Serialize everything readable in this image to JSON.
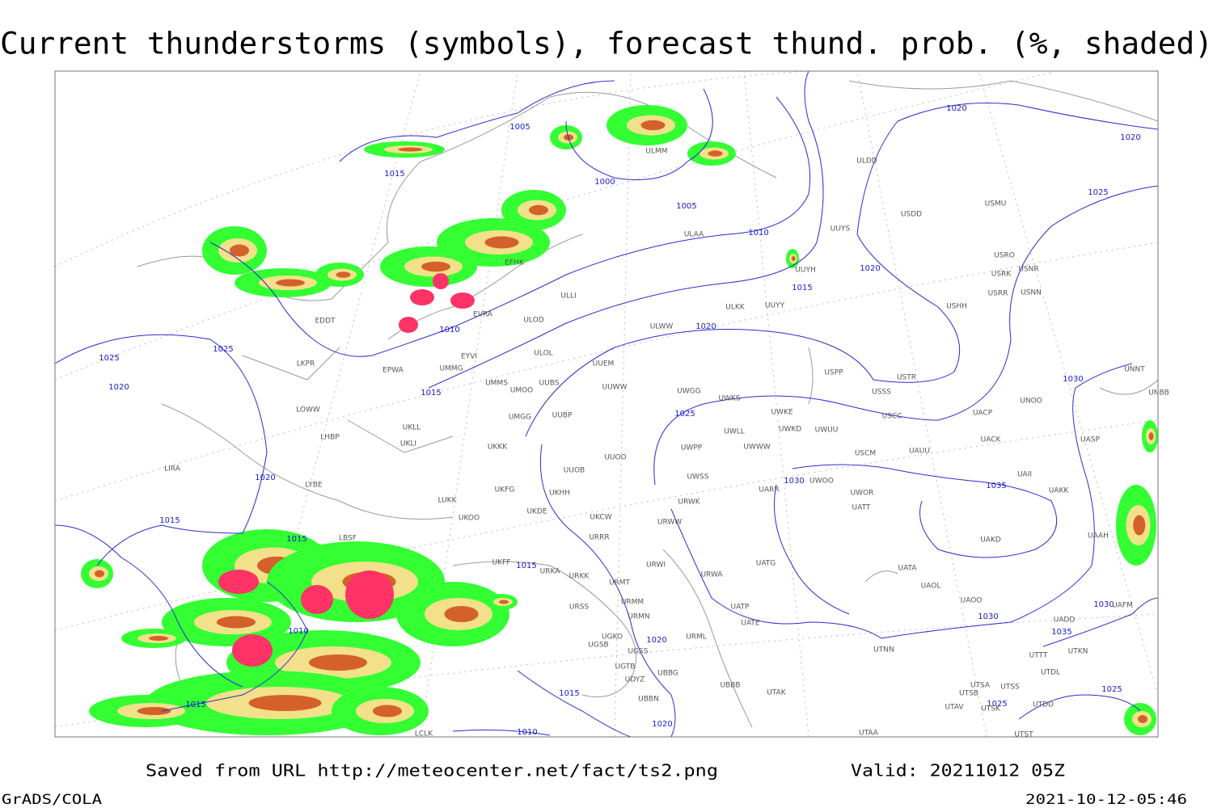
{
  "title": "Current thunderstorms (symbols), forecast thund. prob. (%, shaded)",
  "footer": {
    "saved_from": "Saved from URL http://meteocenter.net/fact/ts2.png",
    "valid": "Valid: 20211012 05Z",
    "software": "GrADS/COLA",
    "timestamp": "2021-10-12-05:46"
  },
  "isobar_labels": [
    1005,
    1015,
    1000,
    1005,
    1010,
    1015,
    1020,
    1020,
    1020,
    1025,
    1010,
    1020,
    1015,
    1025,
    1025,
    1020,
    1020,
    1015,
    1015,
    1015,
    1010,
    1020,
    1015,
    1020,
    1010,
    1015,
    1025,
    1030,
    1035,
    1030,
    1030,
    1035,
    1030,
    1025,
    1025
  ],
  "stations": [
    "ULMM",
    "ULDD",
    "USDD",
    "USMU",
    "ULAA",
    "UUYS",
    "UUYH",
    "EFHK",
    "USRO",
    "USRK",
    "USNR",
    "USRR",
    "USNN",
    "ULLI",
    "EVRA",
    "ULOD",
    "ULKK",
    "UUYY",
    "USHH",
    "EDDT",
    "ULWW",
    "EYVI",
    "ULOL",
    "UUEM",
    "USPP",
    "USTR",
    "UNNT",
    "UNBB",
    "LKPR",
    "EPWA",
    "UMMG",
    "UMMS",
    "UMOO",
    "UUBS",
    "UUWW",
    "UWGG",
    "UWKS",
    "USSS",
    "UNOO",
    "LOWW",
    "UKLL",
    "UMGG",
    "UUBP",
    "UWKE",
    "UWKD",
    "UWUU",
    "USCC",
    "UACP",
    "UKLI",
    "LHBP",
    "UKKK",
    "UWPP",
    "UWLL",
    "UWWW",
    "USCM",
    "UAUU",
    "UACK",
    "UASP",
    "LIRA",
    "UUOO",
    "UUOB",
    "UWSS",
    "LYBE",
    "UKFG",
    "UKOO",
    "UKHH",
    "UARR",
    "UWOO",
    "UWOR",
    "UAII",
    "UAKK",
    "LUKK",
    "UKDE",
    "UKCW",
    "URWK",
    "URWW",
    "UATT",
    "LBSF",
    "URRR",
    "UAKD",
    "UAAH",
    "UKFF",
    "URKA",
    "URKK",
    "URWI",
    "UATG",
    "URMT",
    "URWA",
    "UATA",
    "UAOL",
    "UAOO",
    "URSS",
    "URMM",
    "UATP",
    "URMN",
    "UATE",
    "UADD",
    "UAFM",
    "UGKO",
    "UGSB",
    "UGSS",
    "URML",
    "UTNN",
    "UTTT",
    "UTKN",
    "UGTB",
    "UDYZ",
    "UBBG",
    "UTDL",
    "UBBB",
    "UTAK",
    "UTSA",
    "UTSS",
    "UTSB",
    "UBBN",
    "UTAV",
    "UTSK",
    "UTDD",
    "LCLK",
    "UTAA",
    "UTST"
  ]
}
